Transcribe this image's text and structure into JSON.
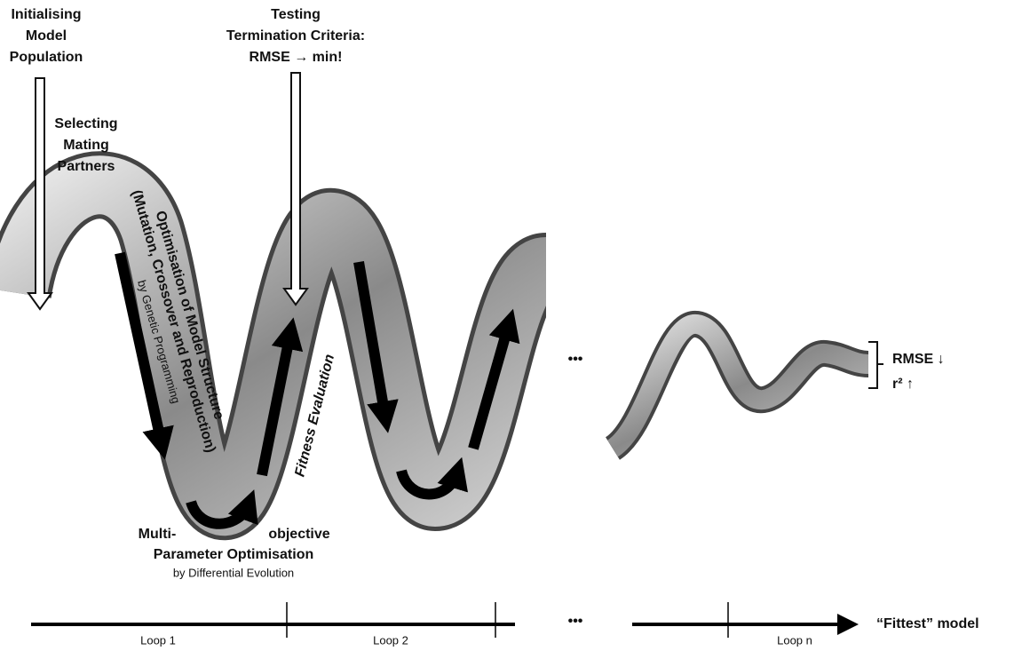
{
  "top_labels": {
    "initialising": [
      "Initialising",
      "Model",
      "Population"
    ],
    "testing": [
      "Testing",
      "Termination Criteria:",
      "RMSE → min!"
    ]
  },
  "selecting": [
    "Selecting",
    "Mating",
    "Partners"
  ],
  "optimisation": {
    "title": "Optimisation of Model Structure",
    "detail": "(Mutation, Crossover and Reproduction)",
    "method": "by Genetic Programming"
  },
  "fitness": "Fitness  Evaluation",
  "parameter": {
    "left": "Multi-",
    "right": "objective",
    "title": "Parameter Optimisation",
    "method": "by Differential Evolution"
  },
  "ellipsis": [
    "•••",
    "•••"
  ],
  "metrics": [
    "RMSE ↓",
    "r² ↑"
  ],
  "timeline": {
    "loops": [
      "Loop 1",
      "Loop 2",
      "Loop n"
    ],
    "result": "“Fittest” model"
  }
}
